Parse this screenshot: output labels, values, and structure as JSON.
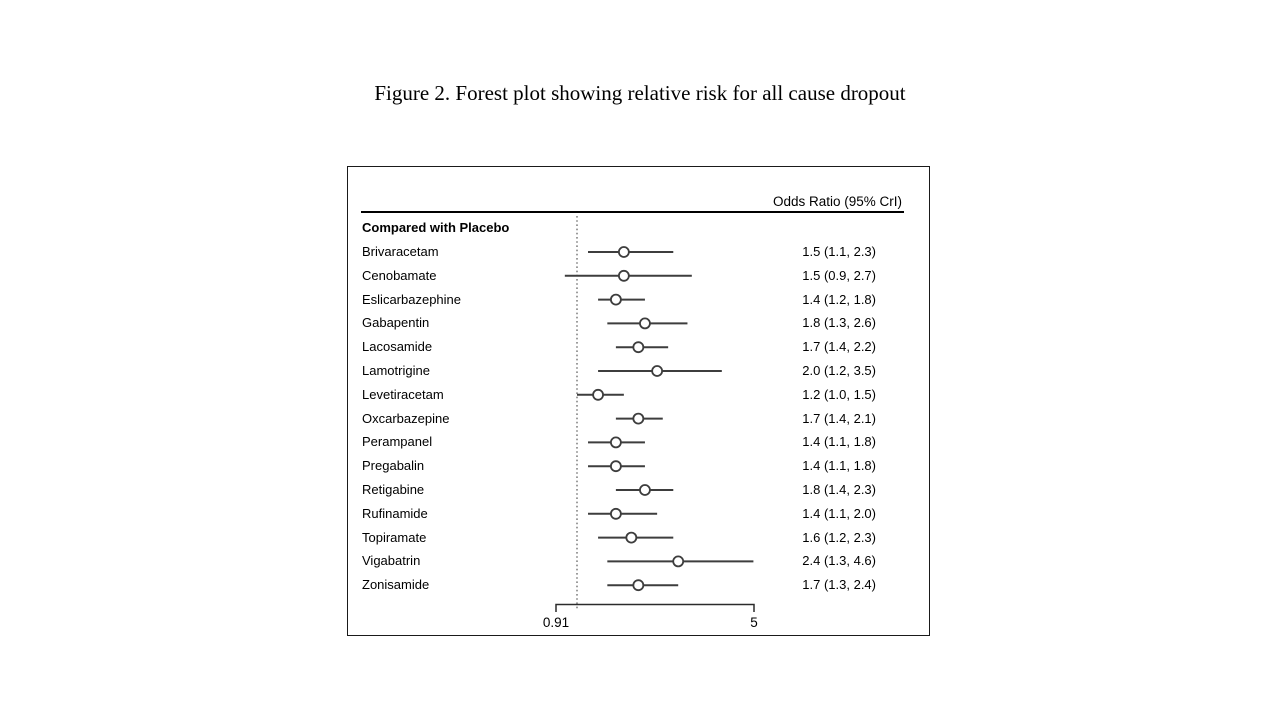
{
  "figure_title": "Figure 2. Forest plot showing relative risk for all cause dropout",
  "chart_data": {
    "type": "forest",
    "title": "Figure 2. Forest plot showing relative risk for all cause dropout",
    "value_column_header": "Odds Ratio (95% CrI)",
    "group_label": "Compared with Placebo",
    "x_axis": {
      "scale": "log",
      "tick_labels": [
        "0.91",
        "5"
      ],
      "tick_values": [
        0.91,
        5
      ],
      "reference_value": 1.0,
      "reference_style": "dotted"
    },
    "rows": [
      {
        "label": "Brivaracetam",
        "or": 1.5,
        "ci_low": 1.1,
        "ci_high": 2.3,
        "display": "1.5 (1.1, 2.3)"
      },
      {
        "label": "Cenobamate",
        "or": 1.5,
        "ci_low": 0.9,
        "ci_high": 2.7,
        "display": "1.5 (0.9, 2.7)"
      },
      {
        "label": "Eslicarbazephine",
        "or": 1.4,
        "ci_low": 1.2,
        "ci_high": 1.8,
        "display": "1.4 (1.2, 1.8)"
      },
      {
        "label": "Gabapentin",
        "or": 1.8,
        "ci_low": 1.3,
        "ci_high": 2.6,
        "display": "1.8 (1.3, 2.6)"
      },
      {
        "label": "Lacosamide",
        "or": 1.7,
        "ci_low": 1.4,
        "ci_high": 2.2,
        "display": "1.7 (1.4, 2.2)"
      },
      {
        "label": "Lamotrigine",
        "or": 2.0,
        "ci_low": 1.2,
        "ci_high": 3.5,
        "display": "2.0 (1.2, 3.5)"
      },
      {
        "label": "Levetiracetam",
        "or": 1.2,
        "ci_low": 1.0,
        "ci_high": 1.5,
        "display": "1.2 (1.0, 1.5)"
      },
      {
        "label": "Oxcarbazepine",
        "or": 1.7,
        "ci_low": 1.4,
        "ci_high": 2.1,
        "display": "1.7 (1.4, 2.1)"
      },
      {
        "label": "Perampanel",
        "or": 1.4,
        "ci_low": 1.1,
        "ci_high": 1.8,
        "display": "1.4 (1.1, 1.8)"
      },
      {
        "label": "Pregabalin",
        "or": 1.4,
        "ci_low": 1.1,
        "ci_high": 1.8,
        "display": "1.4 (1.1, 1.8)"
      },
      {
        "label": "Retigabine",
        "or": 1.8,
        "ci_low": 1.4,
        "ci_high": 2.3,
        "display": "1.8 (1.4, 2.3)"
      },
      {
        "label": "Rufinamide",
        "or": 1.4,
        "ci_low": 1.1,
        "ci_high": 2.0,
        "display": "1.4 (1.1, 2.0)"
      },
      {
        "label": "Topiramate",
        "or": 1.6,
        "ci_low": 1.2,
        "ci_high": 2.3,
        "display": "1.6 (1.2, 2.3)"
      },
      {
        "label": "Vigabatrin",
        "or": 2.4,
        "ci_low": 1.3,
        "ci_high": 4.6,
        "display": "2.4 (1.3, 4.6)"
      },
      {
        "label": "Zonisamide",
        "or": 1.7,
        "ci_low": 1.3,
        "ci_high": 2.4,
        "display": "1.7 (1.3, 2.4)"
      }
    ],
    "colors": {
      "marks": "#3d3d3d",
      "marker_fill": "#ffffff",
      "reference_line": "#5a5a5a",
      "axis": "#2b2b2b",
      "separator": "#000000",
      "border": "#1a1a1a",
      "text": "#000000"
    }
  }
}
